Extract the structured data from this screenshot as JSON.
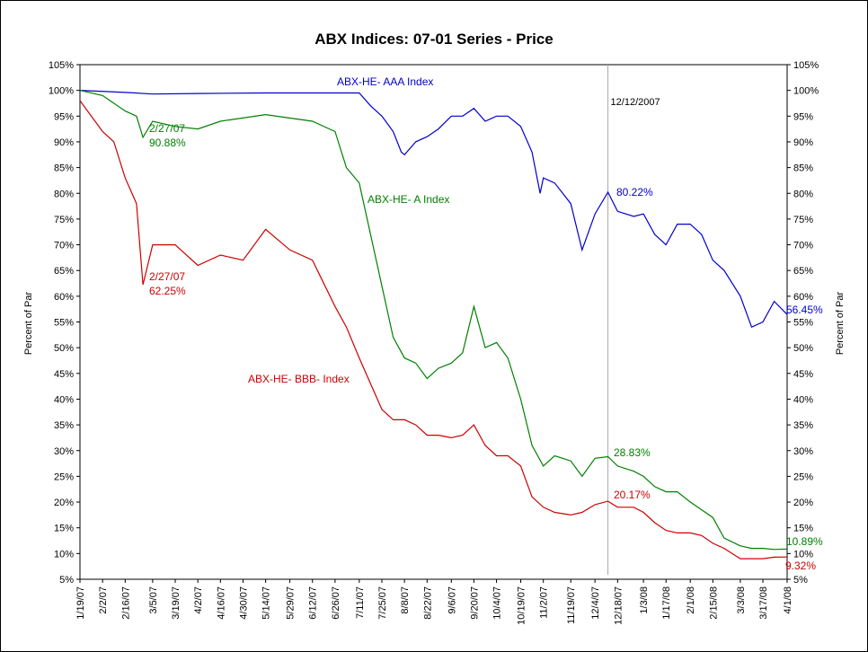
{
  "chart_data": {
    "type": "line",
    "title": "ABX Indices: 07-01 Series - Price",
    "ylabel_left": "Percent of Par",
    "ylabel_right": "Percent of Par",
    "ylim": [
      5,
      105
    ],
    "y_ticks": [
      5,
      10,
      15,
      20,
      25,
      30,
      35,
      40,
      45,
      50,
      55,
      60,
      65,
      70,
      75,
      80,
      85,
      90,
      95,
      100,
      105
    ],
    "y_tick_labels": [
      "5%",
      "10%",
      "15%",
      "20%",
      "25%",
      "30%",
      "35%",
      "40%",
      "45%",
      "50%",
      "55%",
      "60%",
      "65%",
      "70%",
      "75%",
      "80%",
      "85%",
      "90%",
      "95%",
      "100%",
      "105%"
    ],
    "x_tick_labels": [
      "1/19/07",
      "2/2/07",
      "2/16/07",
      "3/5/07",
      "3/19/07",
      "4/2/07",
      "4/16/07",
      "4/30/07",
      "5/14/07",
      "5/29/07",
      "6/12/07",
      "6/26/07",
      "7/11/07",
      "7/25/07",
      "8/8/07",
      "8/22/07",
      "9/6/07",
      "9/20/07",
      "10/4/07",
      "10/19/07",
      "11/2/07",
      "11/19/07",
      "12/4/07",
      "12/18/07",
      "1/3/08",
      "1/17/08",
      "2/1/08",
      "2/15/08",
      "3/3/08",
      "3/17/08",
      "4/1/08"
    ],
    "vline_label": "12/12/2007",
    "vline_date": "12/12/2007",
    "series": [
      {
        "name": "ABX-HE- AAA Index",
        "color": "#0000CC",
        "x": [
          "1/19/07",
          "2/16/07",
          "3/5/07",
          "4/2/07",
          "5/14/07",
          "6/26/07",
          "7/11/07",
          "7/18/07",
          "7/25/07",
          "8/1/07",
          "8/6/07",
          "8/8/07",
          "8/15/07",
          "8/22/07",
          "8/29/07",
          "9/6/07",
          "9/13/07",
          "9/20/07",
          "9/27/07",
          "10/4/07",
          "10/11/07",
          "10/19/07",
          "10/26/07",
          "10/31/07",
          "11/2/07",
          "11/9/07",
          "11/19/07",
          "11/26/07",
          "12/4/07",
          "12/12/07",
          "12/18/07",
          "12/28/07",
          "1/3/08",
          "1/10/08",
          "1/17/08",
          "1/24/08",
          "2/1/08",
          "2/8/08",
          "2/15/08",
          "2/22/08",
          "3/3/08",
          "3/10/08",
          "3/17/08",
          "3/24/08",
          "4/1/08"
        ],
        "y": [
          100,
          99.6,
          99.3,
          99.4,
          99.5,
          99.5,
          99.5,
          97,
          95,
          92,
          88,
          87.5,
          90,
          91,
          92.5,
          95,
          95,
          96.5,
          94,
          95,
          95,
          93,
          88,
          80,
          83,
          82,
          78,
          69,
          76,
          80.22,
          76.5,
          75.5,
          76,
          72,
          70,
          74,
          74,
          72,
          67,
          65,
          60,
          54,
          55,
          59,
          56.45
        ]
      },
      {
        "name": "ABX-HE- A Index",
        "color": "#008000",
        "x": [
          "1/19/07",
          "2/2/07",
          "2/16/07",
          "2/23/07",
          "2/27/07",
          "3/5/07",
          "3/19/07",
          "4/2/07",
          "4/16/07",
          "5/14/07",
          "6/12/07",
          "6/26/07",
          "7/3/07",
          "7/11/07",
          "7/18/07",
          "7/25/07",
          "8/1/07",
          "8/8/07",
          "8/15/07",
          "8/22/07",
          "8/29/07",
          "9/6/07",
          "9/13/07",
          "9/20/07",
          "9/27/07",
          "10/4/07",
          "10/11/07",
          "10/19/07",
          "10/26/07",
          "11/2/07",
          "11/9/07",
          "11/19/07",
          "11/26/07",
          "12/4/07",
          "12/12/07",
          "12/18/07",
          "12/28/07",
          "1/3/08",
          "1/10/08",
          "1/17/08",
          "1/24/08",
          "2/1/08",
          "2/8/08",
          "2/15/08",
          "2/22/08",
          "3/3/08",
          "3/10/08",
          "3/17/08",
          "3/24/08",
          "4/1/08"
        ],
        "y": [
          100,
          99,
          96,
          95,
          90.88,
          94,
          93,
          92.5,
          94,
          95.3,
          94,
          92,
          85,
          82,
          72,
          62,
          52,
          48,
          47,
          44,
          46,
          47,
          49,
          58,
          50,
          51,
          48,
          40,
          31,
          27,
          29,
          28,
          25,
          28.5,
          28.83,
          27,
          26,
          25,
          23,
          22,
          22,
          20,
          18.5,
          17,
          13,
          11.5,
          11,
          11,
          10.8,
          10.89
        ]
      },
      {
        "name": "ABX-HE- BBB- Index",
        "color": "#CC0000",
        "x": [
          "1/19/07",
          "2/2/07",
          "2/9/07",
          "2/16/07",
          "2/23/07",
          "2/27/07",
          "3/5/07",
          "3/19/07",
          "4/2/07",
          "4/16/07",
          "4/30/07",
          "5/14/07",
          "5/29/07",
          "6/12/07",
          "6/26/07",
          "7/3/07",
          "7/11/07",
          "7/18/07",
          "7/25/07",
          "8/1/07",
          "8/8/07",
          "8/15/07",
          "8/22/07",
          "8/29/07",
          "9/6/07",
          "9/13/07",
          "9/20/07",
          "9/27/07",
          "10/4/07",
          "10/11/07",
          "10/19/07",
          "10/26/07",
          "11/2/07",
          "11/9/07",
          "11/19/07",
          "11/26/07",
          "12/4/07",
          "12/12/07",
          "12/18/07",
          "12/28/07",
          "1/3/08",
          "1/10/08",
          "1/17/08",
          "1/24/08",
          "2/1/08",
          "2/8/08",
          "2/15/08",
          "2/22/08",
          "3/3/08",
          "3/10/08",
          "3/17/08",
          "3/24/08",
          "4/1/08"
        ],
        "y": [
          98,
          92,
          90,
          83,
          78,
          62.25,
          70,
          70,
          66,
          68,
          67,
          73,
          69,
          67,
          58,
          54,
          48,
          43,
          38,
          36,
          36,
          35,
          33,
          33,
          32.5,
          33,
          35,
          31,
          29,
          29,
          27,
          21,
          19,
          18,
          17.5,
          18,
          19.5,
          20.17,
          19,
          19,
          18,
          16,
          14.5,
          14,
          14,
          13.5,
          12,
          11,
          9,
          9,
          9,
          9.3,
          9.32
        ]
      }
    ],
    "annotations": [
      {
        "line1": "2/27/07",
        "line2": "90.88%",
        "color": "#008000"
      },
      {
        "line1": "2/27/07",
        "line2": "62.25%",
        "color": "#CC0000"
      },
      {
        "text": "80.22%",
        "color": "#0000CC"
      },
      {
        "text": "28.83%",
        "color": "#008000"
      },
      {
        "text": "20.17%",
        "color": "#CC0000"
      },
      {
        "text": "56.45%",
        "color": "#0000CC"
      },
      {
        "text": "10.89%",
        "color": "#008000"
      },
      {
        "text": "9.32%",
        "color": "#CC0000"
      }
    ]
  }
}
